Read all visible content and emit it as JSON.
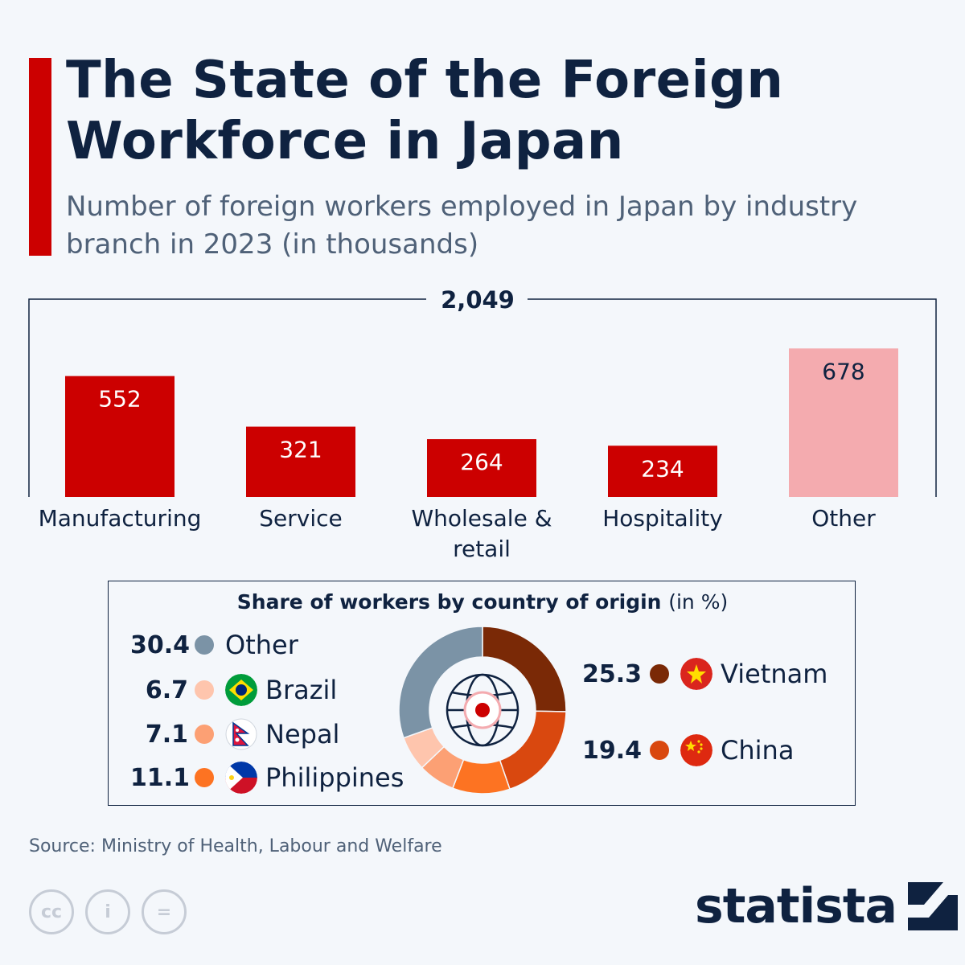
{
  "header": {
    "title": "The State of the Foreign Workforce in Japan",
    "subtitle": "Number of foreign workers employed in Japan by industry branch in 2023 (in thousands)"
  },
  "chart_data": [
    {
      "type": "bar",
      "total_label": "2,049",
      "categories": [
        "Manufacturing",
        "Service",
        "Wholesale & retail",
        "Hospitality",
        "Other"
      ],
      "values": [
        552,
        321,
        264,
        234,
        678
      ],
      "value_labels": [
        "552",
        "321",
        "264",
        "234",
        "678"
      ],
      "colors": [
        "#cc0000",
        "#cc0000",
        "#cc0000",
        "#cc0000",
        "#f4abaf"
      ],
      "label_colors": [
        "#ffffff",
        "#ffffff",
        "#ffffff",
        "#ffffff",
        "#0f2240"
      ],
      "ylim": [
        0,
        700
      ],
      "grid": false
    },
    {
      "type": "pie",
      "title": "Share of workers by country of origin",
      "title_unit": "(in %)",
      "slices": [
        {
          "label": "Vietnam",
          "value": 25.3,
          "value_label": "25.3",
          "color": "#7a2906",
          "flag": "vietnam-flag"
        },
        {
          "label": "China",
          "value": 19.4,
          "value_label": "19.4",
          "color": "#d9480f",
          "flag": "china-flag"
        },
        {
          "label": "Philippines",
          "value": 11.1,
          "value_label": "11.1",
          "color": "#fd7322",
          "flag": "philippines-flag"
        },
        {
          "label": "Nepal",
          "value": 7.1,
          "value_label": "7.1",
          "color": "#fca074",
          "flag": "nepal-flag"
        },
        {
          "label": "Brazil",
          "value": 6.7,
          "value_label": "6.7",
          "color": "#fec5ad",
          "flag": "brazil-flag"
        },
        {
          "label": "Other",
          "value": 30.4,
          "value_label": "30.4",
          "color": "#7b93a6",
          "flag": ""
        }
      ],
      "center_icon": "globe-icon"
    }
  ],
  "footer": {
    "source": "Source: Ministry of Health, Labour and Welfare",
    "license_icons": [
      "cc-icon",
      "attribution-icon",
      "no-derivatives-icon"
    ],
    "license_glyphs": [
      "cc",
      "i",
      "="
    ],
    "brand": "statista"
  }
}
